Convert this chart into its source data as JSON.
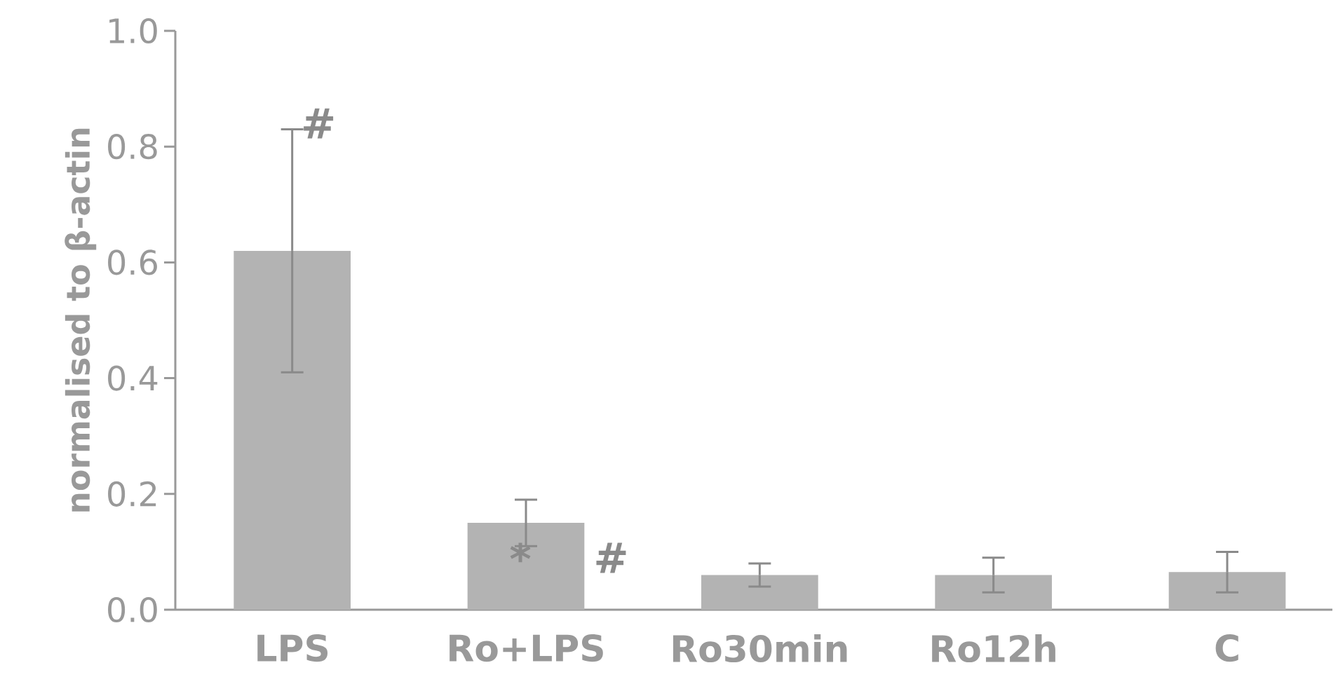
{
  "chart_data": {
    "type": "bar",
    "ylabel": "normalised to β-actin",
    "categories": [
      "LPS",
      "Ro+LPS",
      "Ro30min",
      "Ro12h",
      "C"
    ],
    "values": [
      0.62,
      0.15,
      0.06,
      0.06,
      0.065
    ],
    "errors": [
      0.21,
      0.04,
      0.02,
      0.03,
      0.035
    ],
    "color": "#b3b3b3",
    "ylim": [
      0,
      1.0
    ],
    "yticks": [
      {
        "value": 0,
        "label": "0.0"
      },
      {
        "value": 0.2,
        "label": "0.2"
      },
      {
        "value": 0.4,
        "label": "0.4"
      },
      {
        "value": 0.6,
        "label": "0.6"
      },
      {
        "value": 0.8,
        "label": "0.8"
      },
      {
        "value": 1.0,
        "label": "1.0"
      }
    ],
    "annotations": [
      {
        "text": "#",
        "x": "LPS",
        "y": 0.84
      },
      {
        "text": "*",
        "x": "Ro+LPS",
        "y": 0.15
      },
      {
        "text": "#",
        "x": "Ro+LPS",
        "y": 0.15
      }
    ]
  }
}
